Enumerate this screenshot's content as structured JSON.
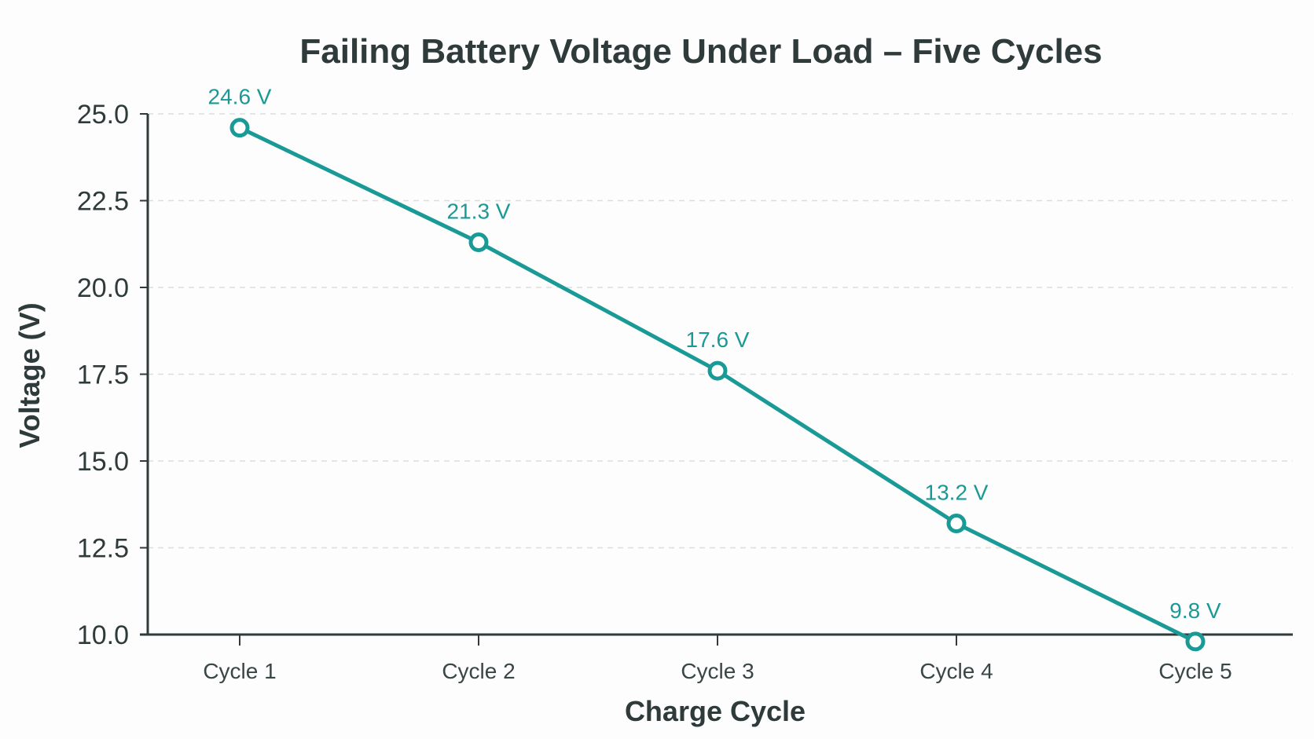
{
  "chart_data": {
    "type": "line",
    "title": "Failing Battery Voltage Under Load – Five Cycles",
    "xlabel": "Charge Cycle",
    "ylabel": "Voltage (V)",
    "categories": [
      "Cycle 1",
      "Cycle 2",
      "Cycle 3",
      "Cycle 4",
      "Cycle 5"
    ],
    "series": [
      {
        "values": [
          24.6,
          21.3,
          17.6,
          13.2,
          9.8
        ],
        "labels": [
          "24.6 V",
          "21.3 V",
          "17.6 V",
          "13.2 V",
          "9.8 V"
        ],
        "color": "#1a9a96"
      }
    ],
    "ylim": [
      10.0,
      25.0
    ],
    "yticks": [
      "10.0",
      "12.5",
      "15.0",
      "17.5",
      "20.0",
      "22.5",
      "25.0"
    ],
    "grid": true,
    "gridColor": "#dddddd",
    "axisColor": "#2f3a3a"
  }
}
